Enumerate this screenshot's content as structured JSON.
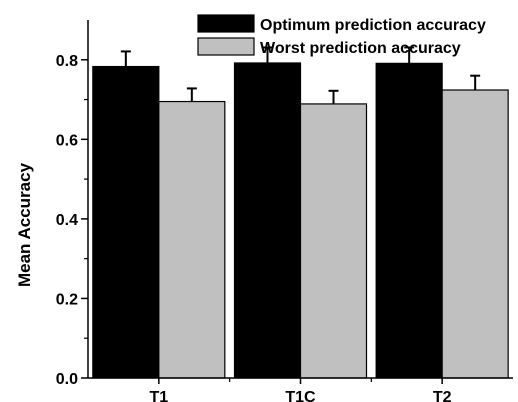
{
  "chart_data": {
    "type": "bar",
    "title": "",
    "xlabel": "",
    "ylabel": "Mean Accuracy",
    "categories": [
      "T1",
      "T1C",
      "T2"
    ],
    "series": [
      {
        "name": "Optimum prediction accuracy",
        "values": [
          0.783,
          0.792,
          0.791
        ],
        "errors": [
          0.038,
          0.039,
          0.04
        ],
        "color": "#000000"
      },
      {
        "name": "Worst prediction accuracy",
        "values": [
          0.695,
          0.689,
          0.724
        ],
        "errors": [
          0.033,
          0.033,
          0.036
        ],
        "color": "#c0c0c0"
      }
    ],
    "ylim": [
      0,
      0.9
    ],
    "yticks": [
      0.0,
      0.2,
      0.4,
      0.6,
      0.8
    ],
    "ytick_labels": [
      "0.0",
      "0.2",
      "0.4",
      "0.6",
      "0.8"
    ],
    "legend_position": "top-right",
    "grid": false
  }
}
